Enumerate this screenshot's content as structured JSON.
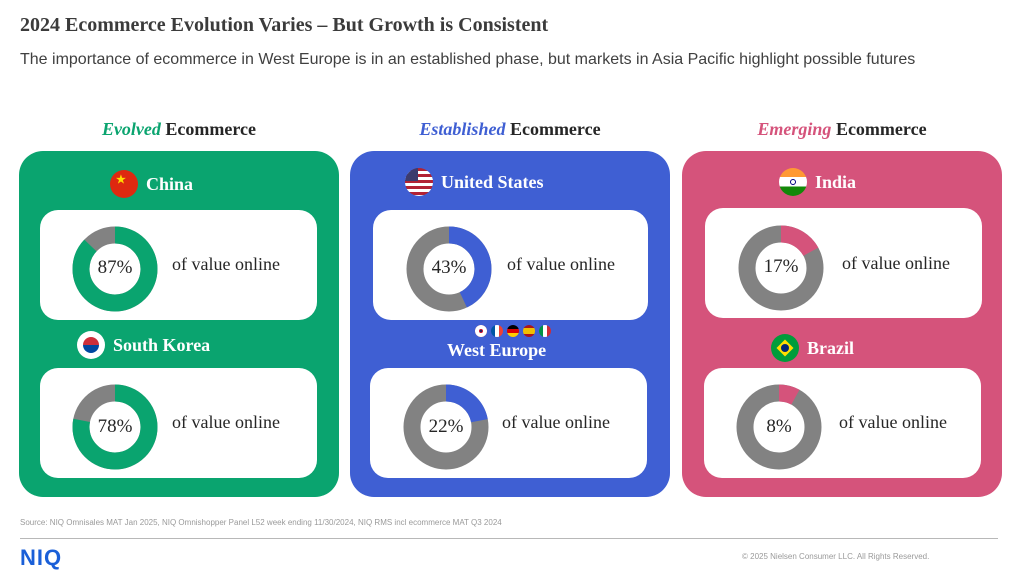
{
  "title": "2024 Ecommerce Evolution Varies – But Growth is Consistent",
  "subtitle": "The importance of ecommerce in West Europe is in an established phase, but markets in Asia Pacific highlight possible futures",
  "caption": "of value online",
  "colors": {
    "evolved": "#0aa46f",
    "established": "#3f5fd3",
    "emerging": "#d5537b",
    "donut_rest": "#828282"
  },
  "columns": [
    {
      "emphasis": "Evolved",
      "suffix": " Ecommerce",
      "accent": "#0aa46f"
    },
    {
      "emphasis": "Established",
      "suffix": " Ecommerce",
      "accent": "#3f5fd3"
    },
    {
      "emphasis": "Emerging",
      "suffix": " Ecommerce",
      "accent": "#d5537b"
    }
  ],
  "chart_data": {
    "type": "donut",
    "unit": "% of value online",
    "categories": [
      "China",
      "South Korea",
      "United States",
      "West Europe",
      "India",
      "Brazil"
    ],
    "values": [
      87,
      78,
      43,
      22,
      17,
      8
    ],
    "groups": [
      "Evolved",
      "Evolved",
      "Established",
      "Established",
      "Emerging",
      "Emerging"
    ],
    "labels": [
      "87%",
      "78%",
      "43%",
      "22%",
      "17%",
      "8%"
    ]
  },
  "icons": [
    "china-flag-icon",
    "south-korea-flag-icon",
    "us-flag-icon",
    "uk-flag-icon",
    "france-flag-icon",
    "germany-flag-icon",
    "spain-flag-icon",
    "italy-flag-icon",
    "india-flag-icon",
    "brazil-flag-icon"
  ],
  "footer": {
    "source": "Source: NIQ Omnisales MAT Jan 2025, NIQ Omnishopper Panel L52 week ending 11/30/2024, NIQ RMS incl ecommerce MAT Q3 2024",
    "logo": "NIQ",
    "copyright": "© 2025 Nielsen Consumer LLC. All Rights Reserved."
  }
}
